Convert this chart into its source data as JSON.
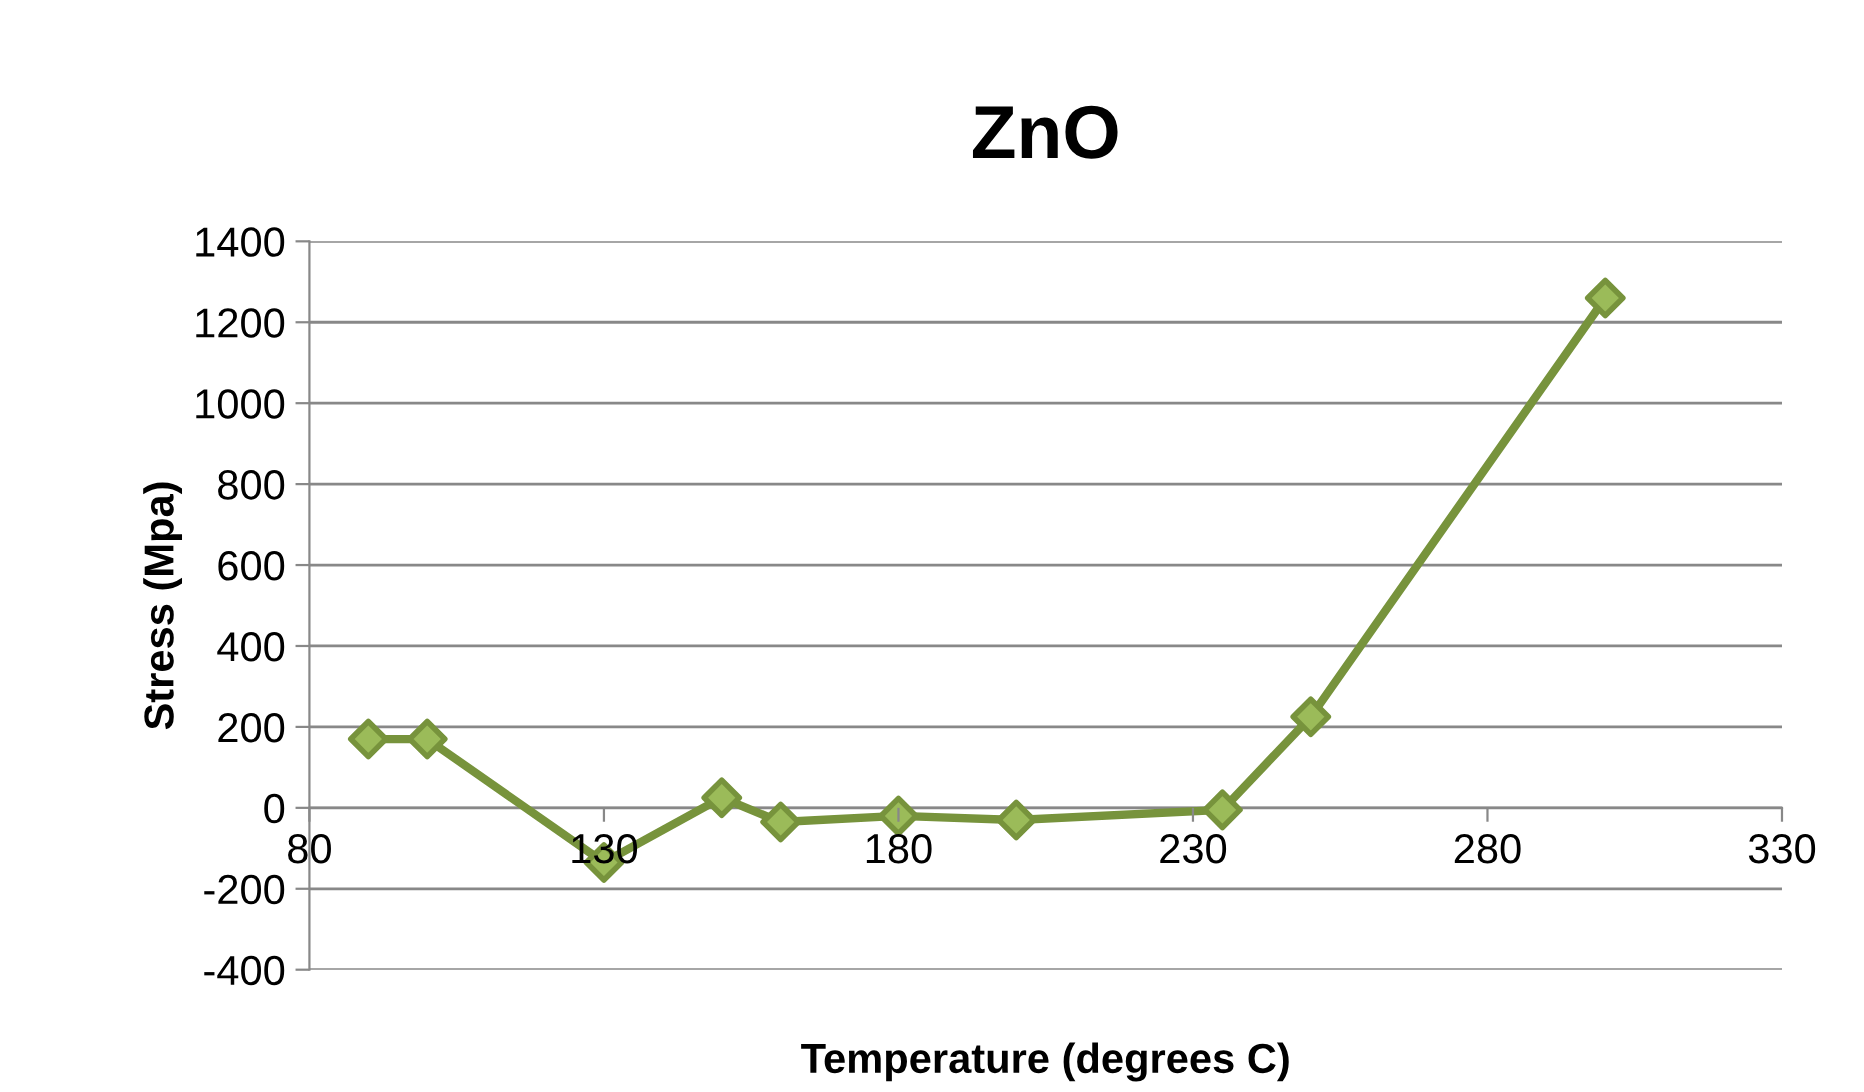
{
  "chart_data": {
    "type": "line",
    "title": "ZnO",
    "xlabel": "Temperature (degrees C)",
    "ylabel": "Stress (Mpa)",
    "x": [
      90,
      100,
      130,
      150,
      160,
      180,
      200,
      235,
      250,
      300
    ],
    "series": [
      {
        "color": "#77933c",
        "values": [
          170,
          170,
          -135,
          25,
          -35,
          -20,
          -30,
          -5,
          225,
          1260
        ]
      }
    ],
    "xlim": [
      80,
      330
    ],
    "xticks": [
      80,
      130,
      180,
      230,
      280,
      330
    ],
    "ylim": [
      -400,
      1400
    ],
    "yticks": [
      -400,
      -200,
      0,
      200,
      400,
      600,
      800,
      1000,
      1200,
      1400
    ],
    "grid": "y",
    "marker": "diamond",
    "line_style": "solid",
    "legend": false
  }
}
